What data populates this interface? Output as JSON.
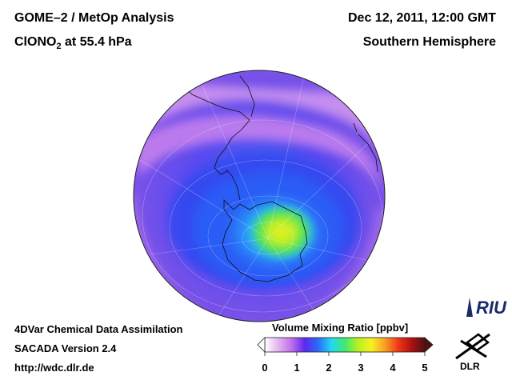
{
  "header": {
    "product": "GOME–2 / MetOp Analysis",
    "species_main": "ClONO",
    "species_sub": "2",
    "species_suffix": " at 55.4 hPa",
    "datetime": "Dec 12, 2011, 12:00 GMT",
    "region": "Southern Hemisphere"
  },
  "footer": {
    "line1": "4DVar Chemical Data Assimilation",
    "line2": "SACADA Version 2.4",
    "line3": "http://wdc.dlr.de"
  },
  "colorbar": {
    "title": "Volume Mixing Ratio [ppbv]",
    "ticks": [
      "0",
      "1",
      "2",
      "3",
      "4",
      "5"
    ],
    "range": [
      0,
      5
    ],
    "colors": [
      "#ffffff",
      "#e4b4f0",
      "#c070e8",
      "#5a28f0",
      "#2a6cf8",
      "#24d8f0",
      "#40e870",
      "#b8f020",
      "#f8f020",
      "#f8a020",
      "#f03818",
      "#b01010",
      "#501010"
    ]
  },
  "logos": {
    "riu": "RIU",
    "dlr": "DLR"
  }
}
